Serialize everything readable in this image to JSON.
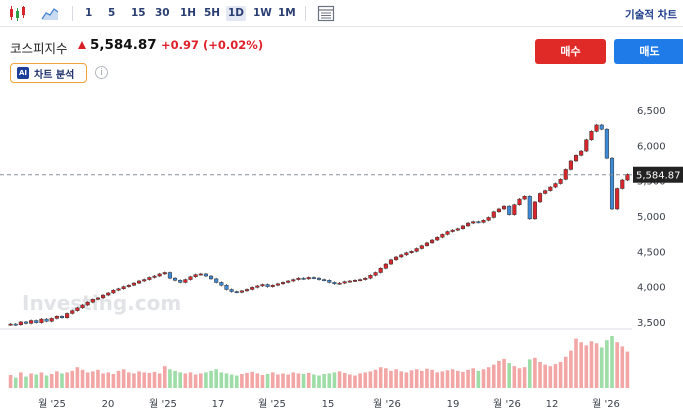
{
  "toolbar": {
    "timeframes": [
      "1",
      "5",
      "15",
      "30",
      "1H",
      "5H",
      "1D",
      "1W",
      "1M"
    ],
    "active_timeframe": "1D",
    "technical_chart_label": "기술적 차트"
  },
  "instrument": {
    "name": "코스피지수",
    "price": "5,584.87",
    "change": "+0.97",
    "change_pct": "(+0.02%)",
    "direction": "up"
  },
  "ai_button": {
    "badge": "AI",
    "label": "차트 분석"
  },
  "actions": {
    "buy_label": "매수",
    "sell_label": "매도"
  },
  "colors": {
    "up": "#d9252b",
    "down": "#3e8ad6",
    "volume_up": "#f3a6a6",
    "volume_down": "#9edda7",
    "last_price_tag": "#222222",
    "buy": "#e02a28",
    "sell": "#1f7be8"
  },
  "chart_data": {
    "type": "candlestick",
    "y_ticks": [
      "6,500",
      "6,000",
      "5,500",
      "5,000",
      "4,500",
      "4,000",
      "3,500"
    ],
    "ylim": [
      3400,
      6700
    ],
    "last_price_label": "5,584.87",
    "last_price": 5584.87,
    "x_labels": [
      "월 '25",
      "20",
      "월 '25",
      "17",
      "월 '25",
      "15",
      "월 '26",
      "19",
      "월 '26",
      "12",
      "월 '26"
    ],
    "watermark": "Investing.com",
    "closes": [
      3470,
      3460,
      3500,
      3480,
      3520,
      3490,
      3540,
      3510,
      3550,
      3580,
      3560,
      3620,
      3660,
      3700,
      3740,
      3780,
      3820,
      3840,
      3880,
      3910,
      3950,
      3970,
      4000,
      4020,
      4050,
      4080,
      4100,
      4130,
      4150,
      4180,
      4200,
      4120,
      4090,
      4060,
      4100,
      4140,
      4170,
      4180,
      4150,
      4110,
      4060,
      4020,
      3960,
      3930,
      3920,
      3940,
      3960,
      3990,
      4010,
      4030,
      4000,
      4020,
      4040,
      4060,
      4080,
      4100,
      4120,
      4110,
      4130,
      4120,
      4100,
      4090,
      4060,
      4040,
      4050,
      4070,
      4080,
      4090,
      4100,
      4120,
      4160,
      4200,
      4260,
      4320,
      4380,
      4420,
      4450,
      4480,
      4500,
      4540,
      4580,
      4620,
      4660,
      4700,
      4740,
      4780,
      4800,
      4820,
      4860,
      4900,
      4920,
      4910,
      4940,
      4980,
      5060,
      5100,
      5140,
      5020,
      5160,
      5240,
      5280,
      4960,
      5200,
      5320,
      5360,
      5410,
      5460,
      5520,
      5660,
      5780,
      5860,
      5920,
      6080,
      6200,
      6290,
      6230,
      5820,
      5100,
      5390,
      5510,
      5590
    ],
    "volume": [
      0.25,
      0.2,
      0.3,
      0.22,
      0.28,
      0.26,
      0.3,
      0.24,
      0.27,
      0.32,
      0.28,
      0.3,
      0.33,
      0.4,
      0.35,
      0.3,
      0.32,
      0.35,
      0.28,
      0.3,
      0.27,
      0.33,
      0.36,
      0.3,
      0.28,
      0.32,
      0.3,
      0.29,
      0.31,
      0.28,
      0.42,
      0.36,
      0.33,
      0.3,
      0.28,
      0.3,
      0.26,
      0.28,
      0.3,
      0.33,
      0.36,
      0.3,
      0.28,
      0.26,
      0.24,
      0.27,
      0.29,
      0.31,
      0.28,
      0.25,
      0.27,
      0.3,
      0.26,
      0.28,
      0.26,
      0.3,
      0.28,
      0.27,
      0.29,
      0.26,
      0.24,
      0.27,
      0.28,
      0.3,
      0.32,
      0.29,
      0.26,
      0.24,
      0.28,
      0.3,
      0.32,
      0.35,
      0.4,
      0.38,
      0.33,
      0.36,
      0.32,
      0.3,
      0.34,
      0.36,
      0.33,
      0.37,
      0.35,
      0.3,
      0.32,
      0.34,
      0.36,
      0.33,
      0.31,
      0.35,
      0.38,
      0.33,
      0.36,
      0.4,
      0.45,
      0.52,
      0.56,
      0.48,
      0.42,
      0.38,
      0.4,
      0.55,
      0.58,
      0.5,
      0.45,
      0.42,
      0.46,
      0.5,
      0.6,
      0.72,
      0.95,
      0.88,
      0.82,
      0.9,
      0.86,
      0.78,
      0.92,
      1.0,
      0.88,
      0.8,
      0.7
    ]
  }
}
